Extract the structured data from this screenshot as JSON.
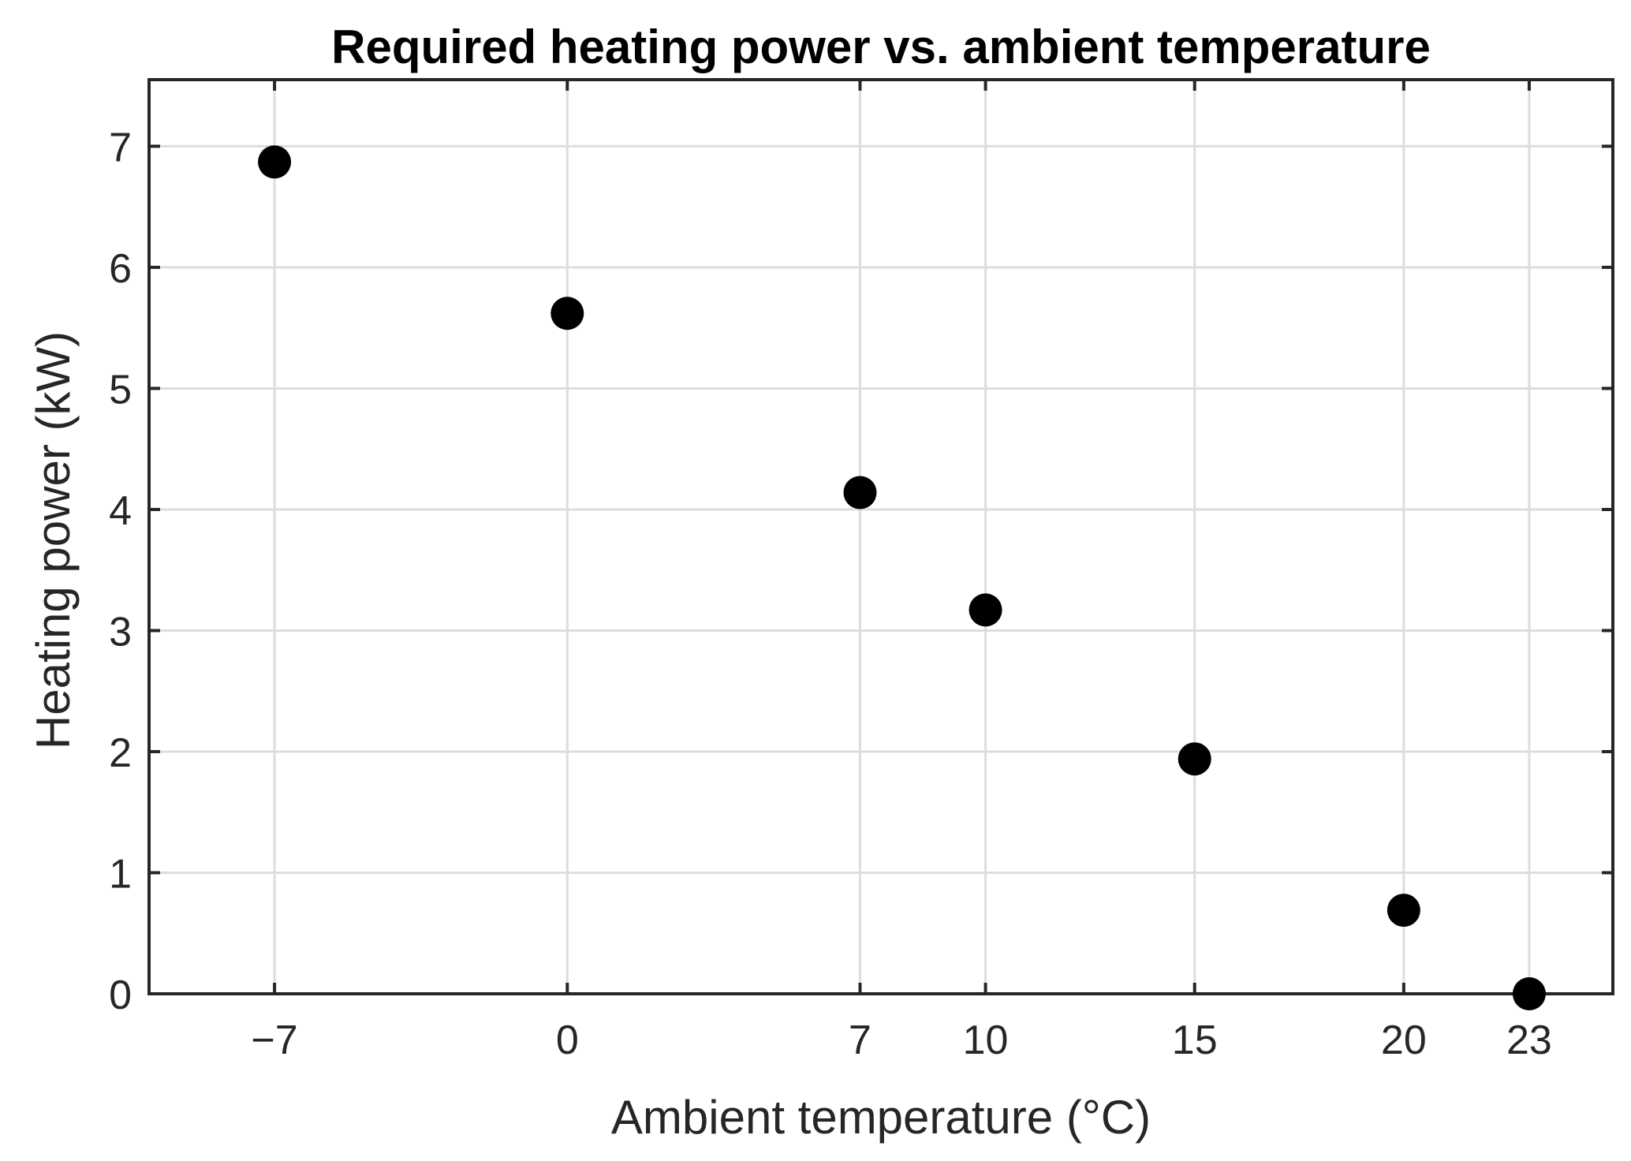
{
  "chart_data": {
    "type": "scatter",
    "title": "Required heating power vs. ambient temperature",
    "xlabel": "Ambient temperature (°C)",
    "ylabel": "Heating power (kW)",
    "x": [
      -7,
      0,
      7,
      10,
      15,
      20,
      23
    ],
    "y": [
      6.87,
      5.62,
      4.14,
      3.17,
      1.94,
      0.69,
      0.0
    ],
    "xticks": [
      -7,
      0,
      7,
      10,
      15,
      20,
      23
    ],
    "xtick_labels": [
      "−7",
      "0",
      "7",
      "10",
      "15",
      "20",
      "23"
    ],
    "yticks": [
      0,
      1,
      2,
      3,
      4,
      5,
      6,
      7
    ],
    "ytick_labels": [
      "0",
      "1",
      "2",
      "3",
      "4",
      "5",
      "6",
      "7"
    ],
    "xlim": [
      -10,
      25
    ],
    "ylim": [
      0,
      7.55
    ],
    "grid": true,
    "marker_color": "#000000",
    "axis_color": "#262626"
  }
}
